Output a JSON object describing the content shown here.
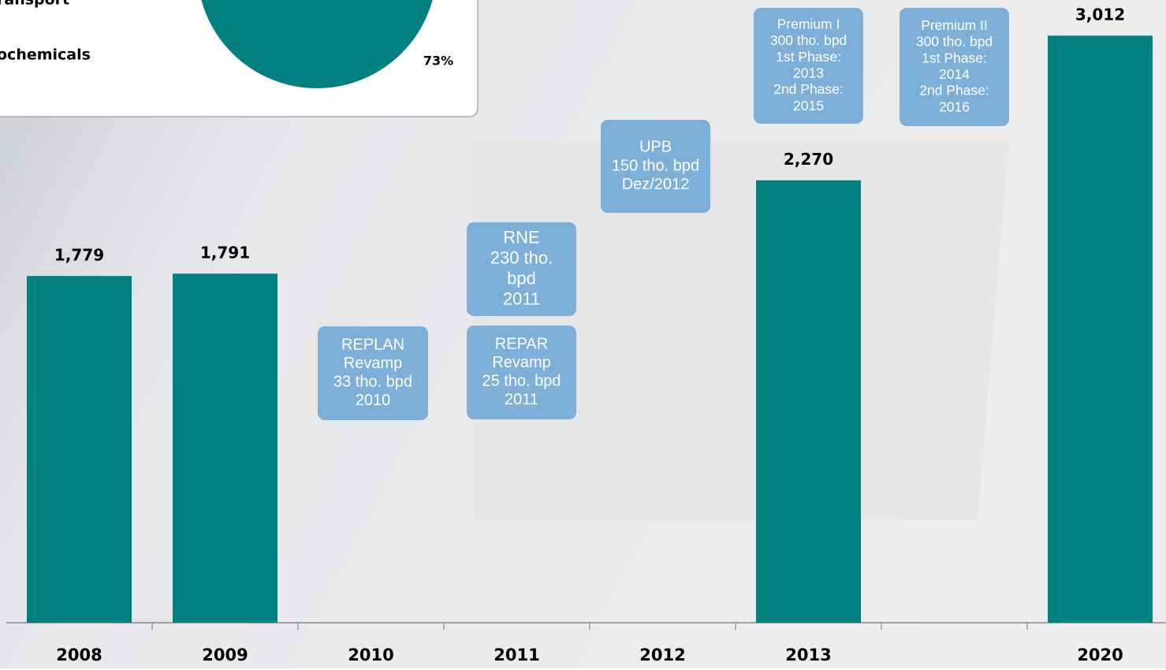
{
  "chart_data": {
    "type": "bar",
    "categories": [
      "2008",
      "2009",
      "2010",
      "2011",
      "2012",
      "2013",
      null,
      "2020"
    ],
    "values": [
      1779,
      1791,
      null,
      null,
      null,
      2270,
      null,
      3012
    ],
    "value_labels": [
      "1,779",
      "1,791",
      null,
      null,
      null,
      "2,270",
      null,
      "3,012"
    ],
    "color": "#008080",
    "ylim": [
      0,
      3195
    ],
    "annotations": [
      {
        "lines": [
          "REPLAN",
          "Revamp",
          "33 tho. bpd",
          "2010"
        ]
      },
      {
        "lines": [
          "REPAR",
          "Revamp",
          "25 tho. bpd",
          "2011"
        ]
      },
      {
        "lines": [
          "RNE",
          "230 tho.",
          "bpd",
          "2011"
        ]
      },
      {
        "lines": [
          "UPB",
          "150 tho. bpd",
          "Dez/2012"
        ]
      },
      {
        "lines": [
          "Premium I",
          "300 tho. bpd",
          "1st Phase:",
          "2013",
          "2nd Phase:",
          "2015"
        ]
      },
      {
        "lines": [
          "Premium II",
          "300 tho. bpd",
          "1st Phase:",
          "2014",
          "2nd Phase:",
          "2016"
        ]
      }
    ],
    "inset_texts": [
      "ransport",
      "ochemicals",
      "73%"
    ]
  }
}
